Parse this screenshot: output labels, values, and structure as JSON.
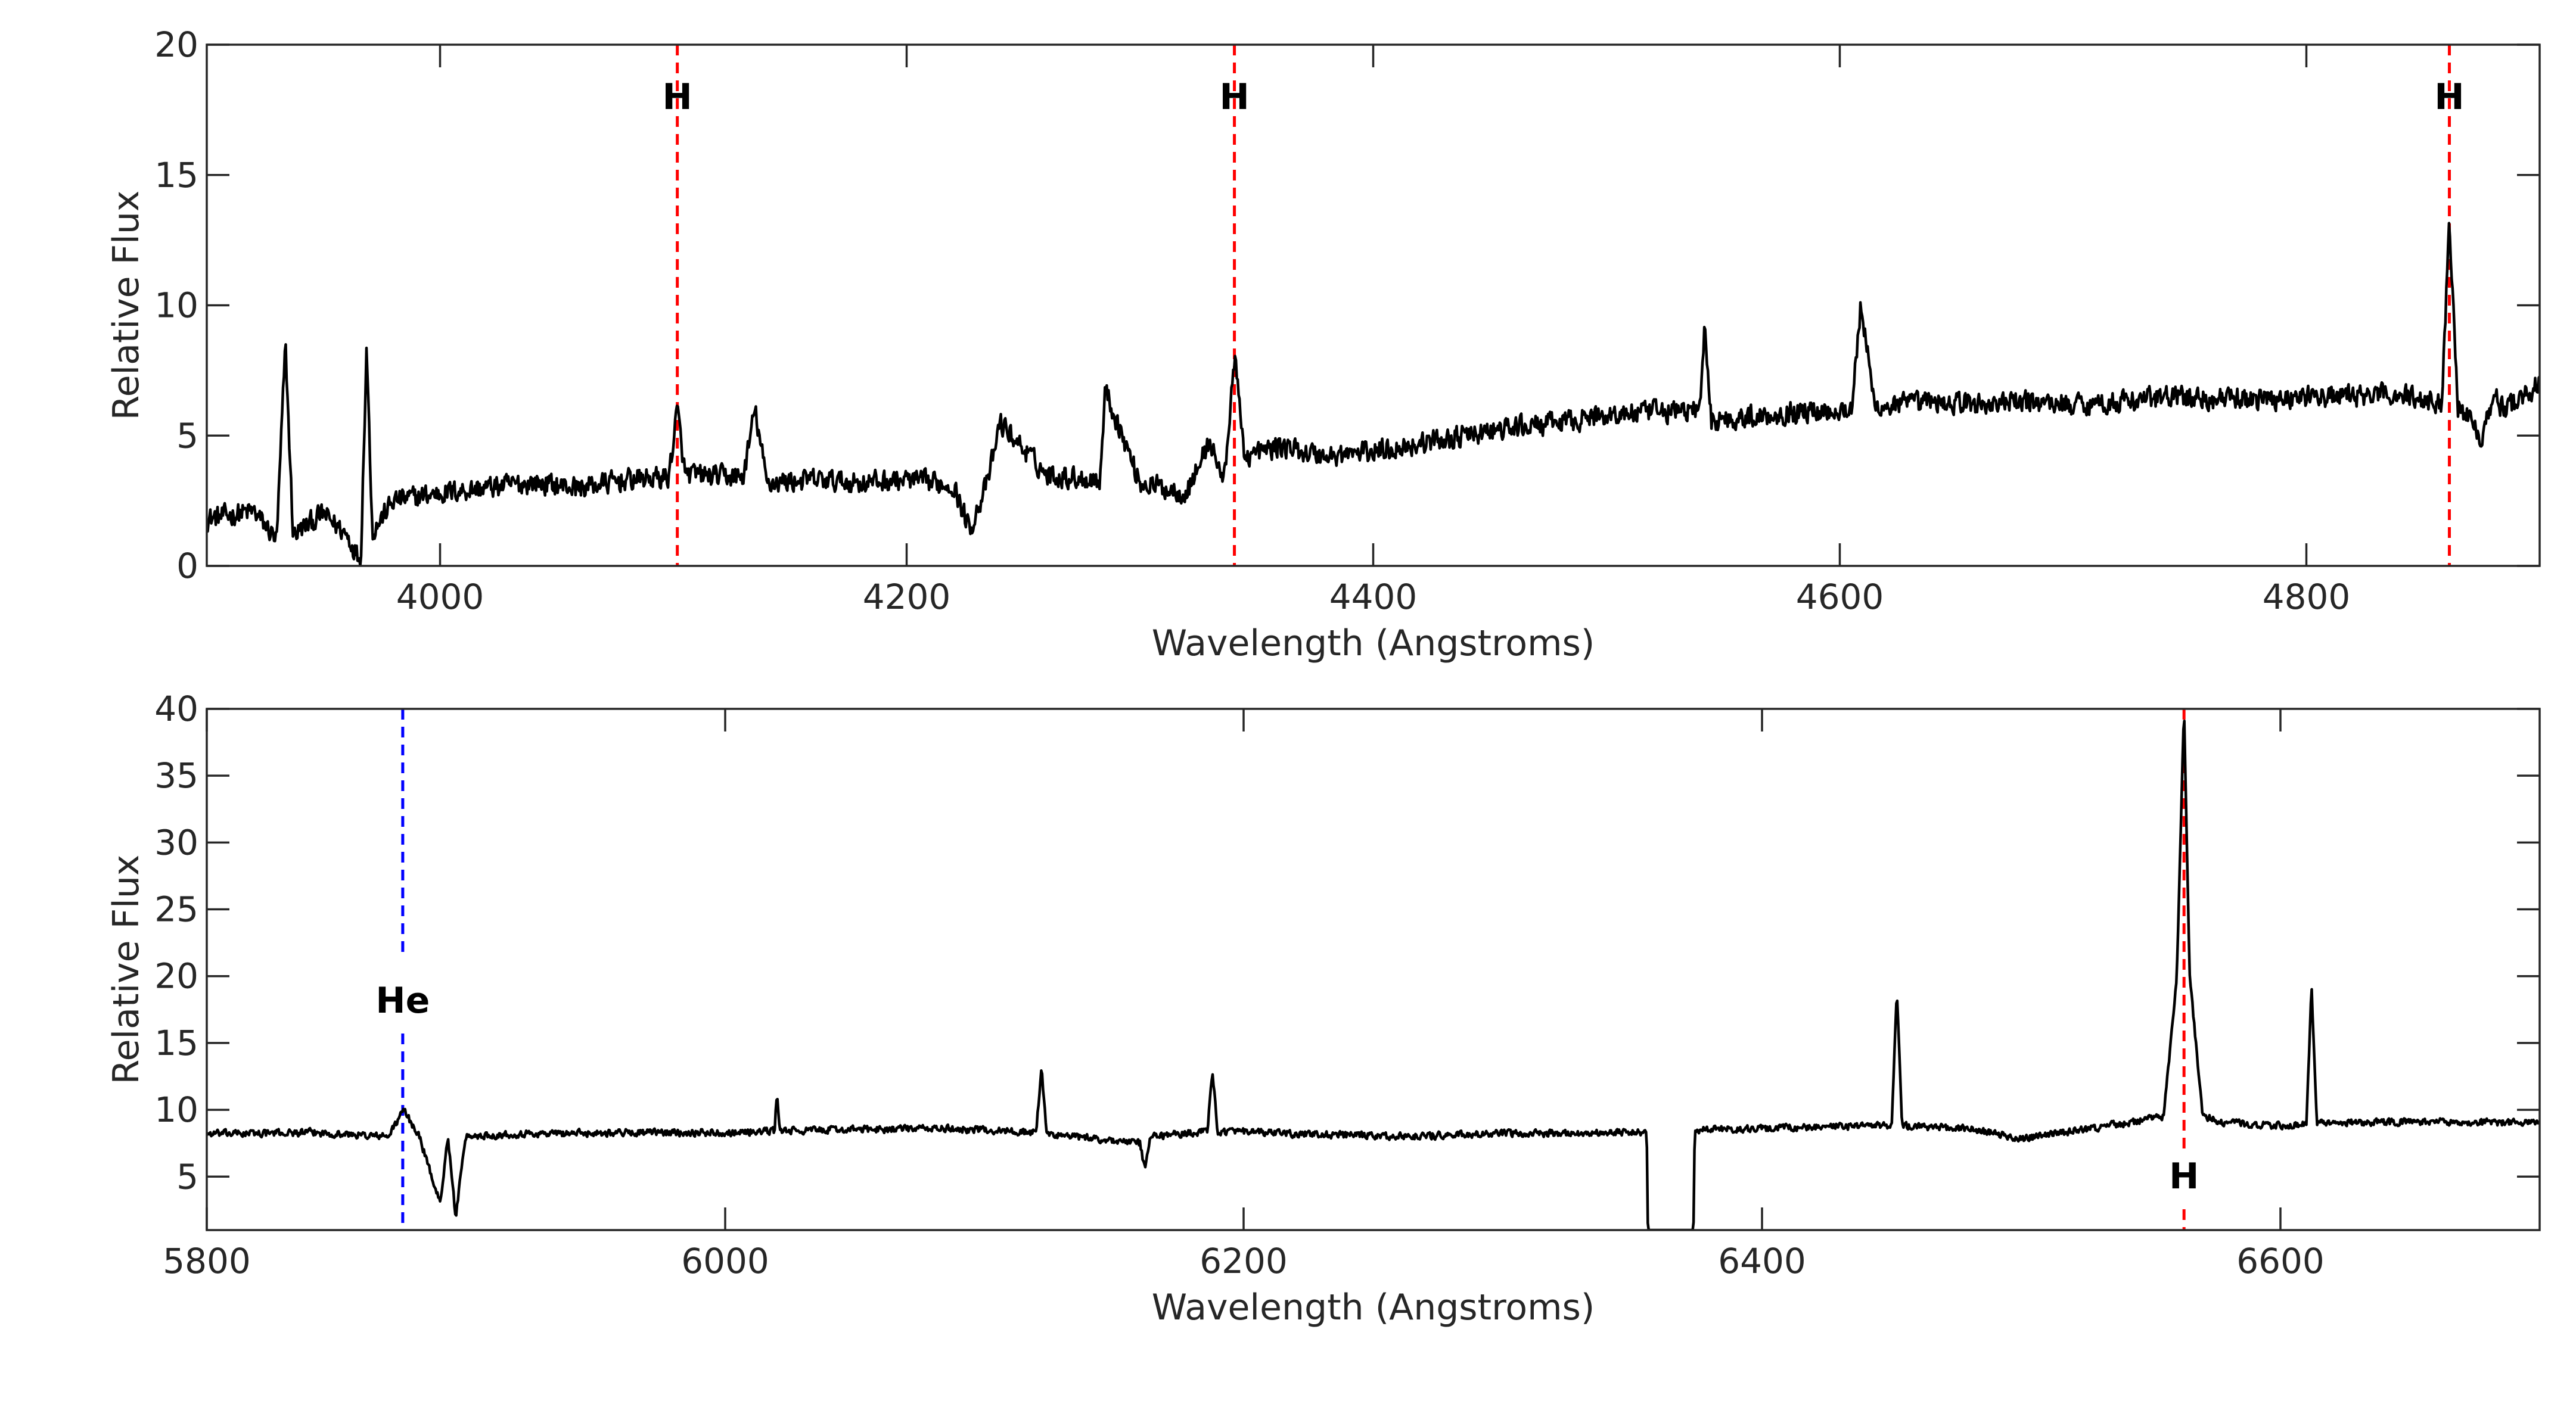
{
  "chart_data": [
    {
      "type": "line",
      "xlabel": "Wavelength (Angstroms)",
      "ylabel": "Relative Flux",
      "xlim": [
        3900,
        4900
      ],
      "ylim": [
        0,
        20
      ],
      "xticks": [
        4000,
        4200,
        4400,
        4600,
        4800
      ],
      "yticks": [
        0,
        5,
        10,
        15,
        20
      ],
      "grid": false,
      "legend": "none",
      "series": [
        {
          "color": "#000000",
          "x": [
            3900,
            3920,
            3930,
            3933.7,
            3937,
            3950,
            3960,
            3966,
            3968.5,
            3971,
            3980,
            4000,
            4020,
            4040,
            4060,
            4080,
            4098,
            4101.7,
            4105,
            4130,
            4135,
            4140,
            4160,
            4180,
            4200,
            4220,
            4227,
            4235,
            4240,
            4260,
            4283,
            4285,
            4300,
            4320,
            4330,
            4336,
            4340.5,
            4345,
            4360,
            4380,
            4400,
            4420,
            4440,
            4460,
            4480,
            4500,
            4520,
            4540,
            4542,
            4545,
            4560,
            4580,
            4600,
            4605,
            4609,
            4615,
            4640,
            4660,
            4680,
            4700,
            4720,
            4740,
            4760,
            4780,
            4800,
            4820,
            4840,
            4858,
            4861.3,
            4865,
            4875,
            4880,
            4885,
            4900
          ],
          "y": [
            1.8,
            2.1,
            1.0,
            8.5,
            1.2,
            2.0,
            1.2,
            0.2,
            8.5,
            1.3,
            2.5,
            2.8,
            3.0,
            3.2,
            3.0,
            3.3,
            3.4,
            6.0,
            3.5,
            3.4,
            6.0,
            3.2,
            3.3,
            3.2,
            3.3,
            3.1,
            1.4,
            3.3,
            5.5,
            3.5,
            3.3,
            6.8,
            3.2,
            2.8,
            4.8,
            3.2,
            8.0,
            4.2,
            4.6,
            4.2,
            4.4,
            4.7,
            5.0,
            5.3,
            5.5,
            5.8,
            5.9,
            6.0,
            9.0,
            5.6,
            5.7,
            5.9,
            6.0,
            6.0,
            10.0,
            6.1,
            6.3,
            6.2,
            6.3,
            6.2,
            6.3,
            6.5,
            6.4,
            6.4,
            6.5,
            6.5,
            6.6,
            6.2,
            13.3,
            6.2,
            5.0,
            6.5,
            6.0,
            7.0
          ]
        }
      ],
      "annotations": [
        {
          "x": 4101.7,
          "label": "H",
          "color": "#ff0000"
        },
        {
          "x": 4340.5,
          "label": "H",
          "color": "#ff0000"
        },
        {
          "x": 4861.3,
          "label": "H",
          "color": "#ff0000"
        }
      ]
    },
    {
      "type": "line",
      "xlabel": "Wavelength (Angstroms)",
      "ylabel": "Relative Flux",
      "xlim": [
        5800,
        6700
      ],
      "ylim": [
        1,
        40
      ],
      "xticks": [
        5800,
        6000,
        6200,
        6400,
        6600
      ],
      "yticks": [
        5,
        10,
        15,
        20,
        25,
        30,
        35,
        40
      ],
      "grid": false,
      "legend": "none",
      "series": [
        {
          "color": "#000000",
          "x": [
            5800,
            5840,
            5870,
            5876,
            5882,
            5890,
            5893,
            5896,
            5900,
            5920,
            5960,
            6000,
            6019,
            6020,
            6021,
            6040,
            6080,
            6100,
            6120,
            6122,
            6124,
            6160,
            6162,
            6164,
            6186,
            6188,
            6190,
            6220,
            6260,
            6300,
            6340,
            6355.5,
            6356,
            6373.5,
            6374,
            6400,
            6440,
            6450,
            6452,
            6454,
            6480,
            6500,
            6540,
            6555,
            6560,
            6562.8,
            6565,
            6570,
            6580,
            6600,
            6610,
            6612,
            6614,
            6650,
            6700
          ],
          "y": [
            8.2,
            8.3,
            8.0,
            10.0,
            8.0,
            3.0,
            8.0,
            2.0,
            8.0,
            8.2,
            8.3,
            8.3,
            8.4,
            11.5,
            8.4,
            8.5,
            8.6,
            8.5,
            8.3,
            13.2,
            8.2,
            7.5,
            5.5,
            8.0,
            8.4,
            12.8,
            8.4,
            8.2,
            8.0,
            8.2,
            8.3,
            8.3,
            0.5,
            0.5,
            8.5,
            8.6,
            8.8,
            8.8,
            19.0,
            8.8,
            8.6,
            7.8,
            9.0,
            9.5,
            20.0,
            40.0,
            20.0,
            9.5,
            9.0,
            8.8,
            9.0,
            19.2,
            9.0,
            9.1,
            9.0
          ]
        }
      ],
      "annotations": [
        {
          "x": 5875.6,
          "label": "He",
          "color": "#0000ff"
        },
        {
          "x": 6562.8,
          "label": "H",
          "color": "#ff0000"
        }
      ]
    }
  ]
}
